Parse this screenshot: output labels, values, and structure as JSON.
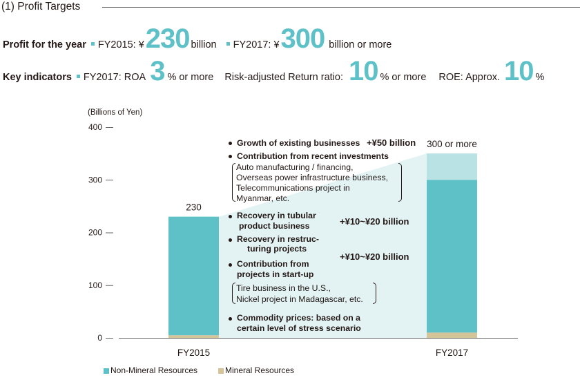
{
  "section_title": "(1) Profit Targets",
  "profit": {
    "label": "Profit for the year",
    "fy2015_prefix": "FY2015: ¥",
    "fy2015_value": "230",
    "fy2015_suffix": "billion",
    "fy2017_prefix": "FY2017: ¥",
    "fy2017_value": "300",
    "fy2017_suffix": "billion or more"
  },
  "indicators": {
    "label": "Key indicators",
    "roa_prefix": "FY2017: ROA",
    "roa_value": "3",
    "roa_suffix": "% or more",
    "rar_prefix": "Risk-adjusted Return ratio:",
    "rar_value": "10",
    "rar_suffix": "% or more",
    "roe_prefix": "ROE: Approx.",
    "roe_value": "10",
    "roe_suffix": "%"
  },
  "chart_data": {
    "type": "bar",
    "stacked": true,
    "ylabel": "(Billions of Yen)",
    "ylim": [
      0,
      400
    ],
    "yticks": [
      0,
      100,
      200,
      300,
      400
    ],
    "categories": [
      "FY2015",
      "FY2017"
    ],
    "series": [
      {
        "name": "Mineral Resources",
        "values": [
          5,
          10
        ],
        "color": "#d5c497"
      },
      {
        "name": "Non-Mineral Resources",
        "values": [
          225,
          290
        ],
        "color": "#5ec1c8"
      },
      {
        "name": "",
        "values": [
          0,
          50
        ],
        "color": "#b9e2e5"
      }
    ],
    "total_labels": [
      "230",
      "300 or more"
    ],
    "legend_order": [
      "Non-Mineral Resources",
      "Mineral Resources"
    ],
    "legend": "bottom-left"
  },
  "bridge": {
    "item1": "Growth of existing businesses",
    "item1_amount": "+¥50 billion",
    "item2": "Contribution from recent investments",
    "item2_details": [
      "Auto manufacturing / financing,",
      "Overseas power infrastructure business,",
      "Telecommunications project in",
      "Myanmar, etc."
    ],
    "item3_lines": [
      "Recovery in tubular",
      "product business"
    ],
    "item3_amount": "+¥10~¥20 billion",
    "item4_lines": [
      "Recovery in restruc-",
      "turing projects"
    ],
    "item5_lines": [
      "Contribution from",
      "projects in start-up"
    ],
    "item45_amount": "+¥10~¥20 billion",
    "item5_details": [
      "Tire business in the U.S.,",
      "Nickel project in Madagascar, etc."
    ],
    "item6_lines": [
      "Commodity prices: based on a",
      "certain level of stress scenario"
    ]
  }
}
